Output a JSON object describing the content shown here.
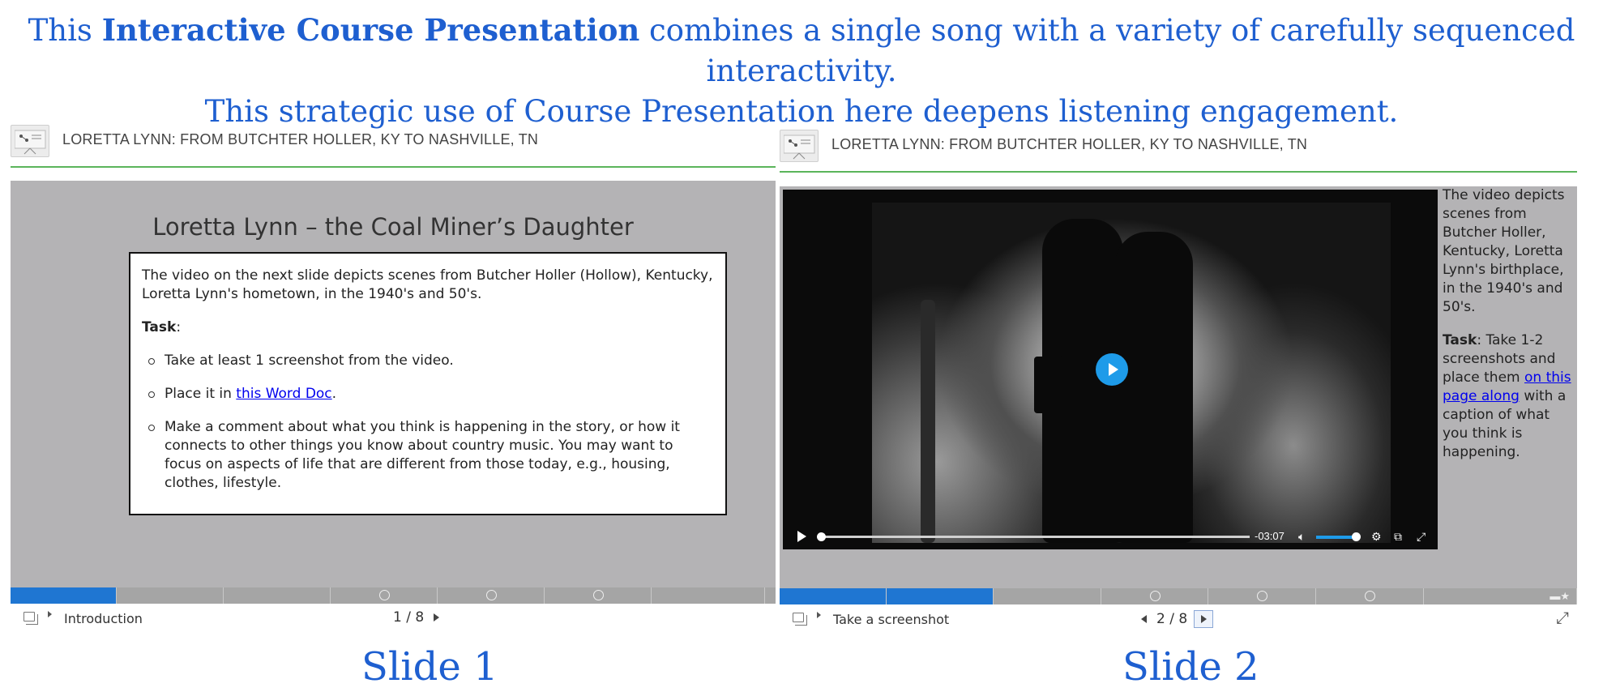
{
  "intro": {
    "prefix": "This ",
    "bold": "Interactive Course Presentation",
    "suffix": " combines a single song with a variety of carefully sequenced interactivity.",
    "line2": "This strategic use of Course Presentation here deepens listening engagement."
  },
  "slide1": {
    "header_title": "LORETTA LYNN: FROM BUTCHTER HOLLER, KY TO NASHVILLE, TN",
    "slide_title": "Loretta Lynn – the Coal Miner’s Daughter",
    "intro_text": "The video on the next slide depicts scenes from Butcher Holler (Hollow), Kentucky, Loretta Lynn's hometown, in the 1940's and 50's.",
    "task_label": "Task",
    "task_colon": ":",
    "bullets": [
      "Take at least 1 screenshot from the video.",
      "Place it in ",
      "Make a comment about what you think is happening in the story, or how it connects to other things you know about country music. You may want to focus on aspects of life that are different from those today, e.g., housing, clothes, lifestyle."
    ],
    "bullet2_link": "this Word Doc",
    "bullet2_end": ".",
    "footer_label": "Introduction",
    "pager_current": "1",
    "pager_sep": "/",
    "pager_total": "8",
    "caption": "Slide 1"
  },
  "slide2": {
    "header_title": "LORETTA LYNN: FROM BUTCHTER HOLLER, KY TO NASHVILLE, TN",
    "side_text": "The video depicts scenes from Butcher Holler, Kentucky,  Loretta Lynn's birthplace, in the 1940's and 50's.",
    "task_label": "Task",
    "task_text_a": ": Take 1-2 screenshots and place them ",
    "task_link": "on this page along",
    "task_text_b": " with a caption of what you think is happening.",
    "video_time": "-03:07",
    "footer_label": "Take a screenshot",
    "pager_current": "2",
    "pager_sep": "/",
    "pager_total": "8",
    "caption": "Slide 2"
  },
  "colors": {
    "accent_blue": "#1e5fd0",
    "progress_done": "#1f76d2",
    "header_rule": "#5bb55b",
    "stage_gray": "#b4b3b5"
  },
  "progress": {
    "segments": 7,
    "slide1_done": 1,
    "slide2_done": 2
  },
  "icons": [
    "presentation-logo-icon",
    "slides-menu-icon",
    "caret-right-icon",
    "prev-arrow-icon",
    "next-arrow-icon",
    "play-icon",
    "volume-icon",
    "settings-icon",
    "popout-icon",
    "fullscreen-icon",
    "star-icon",
    "circle-marker-icon"
  ]
}
